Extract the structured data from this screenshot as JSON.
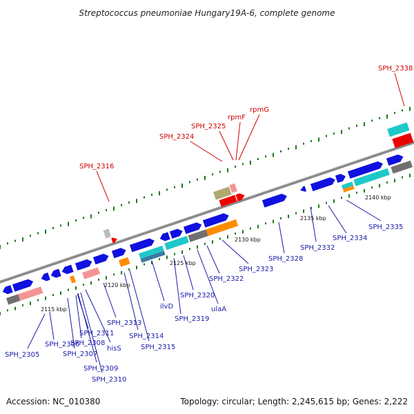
{
  "title": "Streptococcus pneumoniae Hungary19A-6, complete genome",
  "footer": {
    "accession": "Accession: NC_010380",
    "topology": "Topology: circular; Length: 2,245,615 bp; Genes: 2,222"
  },
  "ticks": [
    "2115 kbp",
    "2120 kbp",
    "2125 kbp",
    "2130 kbp",
    "2135 kbp",
    "2140 kbp"
  ],
  "gene_labels_blue": [
    "SPH_2305",
    "SPH_2306",
    "SPH_2307",
    "SPH_2308",
    "SPH_2309",
    "SPH_2310",
    "SPH_2311",
    "hisS",
    "SPH_2313",
    "SPH_2314",
    "SPH_2315",
    "ilvD",
    "SPH_2319",
    "SPH_2320",
    "ulaA",
    "SPH_2322",
    "SPH_2323",
    "SPH_2328",
    "SPH_2332",
    "SPH_2334",
    "SPH_2335"
  ],
  "gene_labels_red": [
    "SPH_2316",
    "SPH_2324",
    "SPH_2325",
    "rpmF",
    "rpmG",
    "SPH_2338"
  ],
  "colors": {
    "backbone": "#8a8a8a",
    "cds": "#1010e0",
    "blast_cyan": "#1ec8c8",
    "blast_orange": "#ff8c00",
    "blast_gray": "#707070",
    "blast_pink": "#f49494",
    "blast_olive": "#b0a870",
    "rna_red": "#ee0000",
    "gc_dots": "#1c7a1c",
    "label_blue": "#1a1aa8",
    "label_red": "#d00000"
  }
}
